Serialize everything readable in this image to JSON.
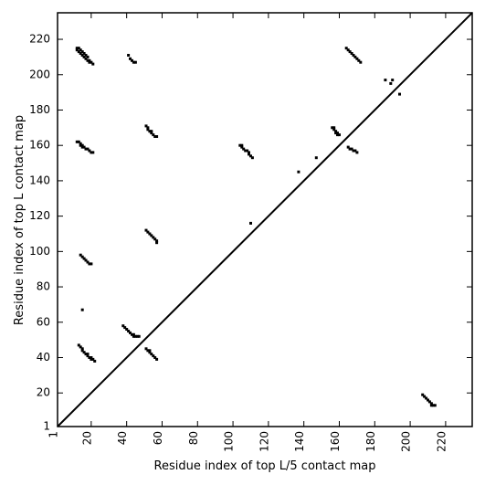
{
  "chart_data": {
    "type": "scatter",
    "title": "",
    "xlabel": "Residue index of top L/5 contact map",
    "ylabel": "Residue index of top L contact map",
    "xlim": [
      1,
      235
    ],
    "ylim": [
      1,
      235
    ],
    "xticks": [
      1,
      20,
      40,
      60,
      80,
      100,
      120,
      140,
      160,
      180,
      200,
      220
    ],
    "xtick_labels": [
      "1",
      "20",
      "40",
      "60",
      "80",
      "100",
      "120",
      "140",
      "160",
      "180",
      "200",
      "220"
    ],
    "yticks": [
      1,
      20,
      40,
      60,
      80,
      100,
      120,
      140,
      160,
      180,
      200,
      220
    ],
    "ytick_labels": [
      "1",
      "20",
      "40",
      "60",
      "80",
      "100",
      "120",
      "140",
      "160",
      "180",
      "200",
      "220"
    ],
    "grid": false,
    "diagonal_line": true,
    "colors": {
      "contact": "#000000",
      "axes": "#000000",
      "background": "#ffffff"
    },
    "series": [
      {
        "points": [
          [
            12,
            215
          ],
          [
            12,
            214
          ],
          [
            13,
            215
          ],
          [
            13,
            213
          ],
          [
            14,
            214
          ],
          [
            14,
            212
          ],
          [
            15,
            213
          ],
          [
            15,
            211
          ],
          [
            16,
            212
          ],
          [
            16,
            210
          ],
          [
            17,
            211
          ],
          [
            17,
            209
          ],
          [
            18,
            210
          ],
          [
            18,
            208
          ],
          [
            19,
            208
          ],
          [
            19,
            207
          ],
          [
            20,
            207
          ],
          [
            21,
            206
          ],
          [
            41,
            211
          ],
          [
            42,
            209
          ],
          [
            43,
            208
          ],
          [
            44,
            207
          ],
          [
            45,
            207
          ],
          [
            164,
            215
          ],
          [
            165,
            214
          ],
          [
            166,
            213
          ],
          [
            167,
            212
          ],
          [
            168,
            211
          ],
          [
            169,
            210
          ],
          [
            170,
            209
          ],
          [
            171,
            208
          ],
          [
            172,
            207
          ],
          [
            186,
            197
          ],
          [
            189,
            195
          ],
          [
            190,
            197
          ],
          [
            194,
            189
          ],
          [
            12,
            162
          ],
          [
            13,
            162
          ],
          [
            14,
            161
          ],
          [
            14,
            160
          ],
          [
            15,
            160
          ],
          [
            15,
            159
          ],
          [
            16,
            159
          ],
          [
            17,
            158
          ],
          [
            18,
            158
          ],
          [
            19,
            157
          ],
          [
            20,
            156
          ],
          [
            21,
            156
          ],
          [
            51,
            171
          ],
          [
            52,
            170
          ],
          [
            52,
            169
          ],
          [
            53,
            168
          ],
          [
            54,
            168
          ],
          [
            54,
            167
          ],
          [
            55,
            166
          ],
          [
            56,
            165
          ],
          [
            57,
            165
          ],
          [
            104,
            160
          ],
          [
            105,
            160
          ],
          [
            105,
            159
          ],
          [
            106,
            158
          ],
          [
            107,
            157
          ],
          [
            108,
            157
          ],
          [
            109,
            156
          ],
          [
            109,
            155
          ],
          [
            110,
            154
          ],
          [
            111,
            153
          ],
          [
            147,
            153
          ],
          [
            137,
            145
          ],
          [
            156,
            170
          ],
          [
            157,
            170
          ],
          [
            157,
            169
          ],
          [
            158,
            168
          ],
          [
            158,
            167
          ],
          [
            159,
            167
          ],
          [
            159,
            166
          ],
          [
            160,
            166
          ],
          [
            165,
            159
          ],
          [
            166,
            158
          ],
          [
            167,
            158
          ],
          [
            168,
            157
          ],
          [
            169,
            157
          ],
          [
            170,
            156
          ],
          [
            110,
            116
          ],
          [
            51,
            112
          ],
          [
            52,
            111
          ],
          [
            53,
            110
          ],
          [
            54,
            109
          ],
          [
            55,
            108
          ],
          [
            56,
            107
          ],
          [
            57,
            106
          ],
          [
            57,
            105
          ],
          [
            14,
            98
          ],
          [
            15,
            97
          ],
          [
            16,
            96
          ],
          [
            17,
            95
          ],
          [
            18,
            94
          ],
          [
            19,
            93
          ],
          [
            20,
            93
          ],
          [
            15,
            67
          ],
          [
            38,
            58
          ],
          [
            39,
            57
          ],
          [
            40,
            56
          ],
          [
            41,
            55
          ],
          [
            42,
            54
          ],
          [
            43,
            53
          ],
          [
            44,
            53
          ],
          [
            44,
            52
          ],
          [
            45,
            52
          ],
          [
            46,
            52
          ],
          [
            47,
            52
          ],
          [
            13,
            47
          ],
          [
            14,
            46
          ],
          [
            15,
            45
          ],
          [
            15,
            44
          ],
          [
            16,
            43
          ],
          [
            17,
            42
          ],
          [
            18,
            42
          ],
          [
            18,
            41
          ],
          [
            19,
            40
          ],
          [
            20,
            40
          ],
          [
            20,
            39
          ],
          [
            21,
            39
          ],
          [
            22,
            38
          ],
          [
            51,
            45
          ],
          [
            52,
            44
          ],
          [
            53,
            44
          ],
          [
            53,
            43
          ],
          [
            54,
            42
          ],
          [
            55,
            41
          ],
          [
            56,
            40
          ],
          [
            57,
            39
          ],
          [
            207,
            19
          ],
          [
            208,
            18
          ],
          [
            209,
            17
          ],
          [
            210,
            16
          ],
          [
            211,
            15
          ],
          [
            212,
            14
          ],
          [
            212,
            13
          ],
          [
            213,
            13
          ],
          [
            214,
            13
          ]
        ]
      }
    ]
  }
}
